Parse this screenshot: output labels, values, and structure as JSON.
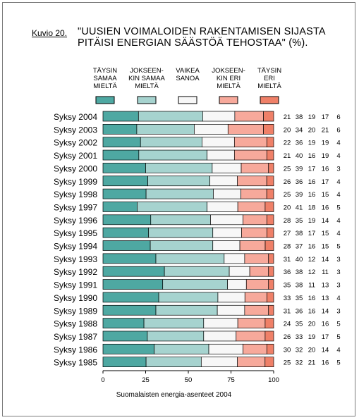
{
  "figure_label": "Kuvio 20.",
  "title_lines": [
    "\"UUSIEN VOIMALOIDEN RAKENTAMISEN SIJASTA",
    "PITÄISI ENERGIAN SÄÄSTÖÄ TEHOSTAA\" (%)."
  ],
  "caption": "Suomalaisten energia-asenteet 2004",
  "colors": [
    "#4ea8a2",
    "#a6d3cf",
    "#f7f7f7",
    "#f7a99b",
    "#ef8068"
  ],
  "chart_data": {
    "type": "bar",
    "orientation": "horizontal",
    "stacked": true,
    "xlim": [
      0,
      100
    ],
    "x_ticks": [
      0,
      25,
      50,
      75,
      100
    ],
    "legend_position": "top",
    "series": [
      {
        "name": "TÄYSIN SAMAA MIELTÄ",
        "label_lines": [
          "TÄYSIN",
          "SAMAA",
          "MIELTÄ"
        ],
        "color": "#4ea8a2"
      },
      {
        "name": "JOKSEENKIN SAMAA MIELTÄ",
        "label_lines": [
          "JOKSEEN-",
          "KIN SAMAA",
          "MIELTÄ"
        ],
        "color": "#a6d3cf"
      },
      {
        "name": "VAIKEA SANOA",
        "label_lines": [
          "VAIKEA",
          "SANOA"
        ],
        "color": "#f7f7f7"
      },
      {
        "name": "JOKSEENKIN ERI MIELTÄ",
        "label_lines": [
          "JOKSEEN-",
          "KIN ERI",
          "MIELTÄ"
        ],
        "color": "#f7a99b"
      },
      {
        "name": "TÄYSIN ERI MIELTÄ",
        "label_lines": [
          "TÄYSIN",
          "ERI",
          "MIELTÄ"
        ],
        "color": "#ef8068"
      }
    ],
    "categories": [
      "Syksy 2004",
      "Syksy 2003",
      "Syksy 2002",
      "Syksy 2001",
      "Syksy 2000",
      "Syksy 1999",
      "Syksy 1998",
      "Syksy 1997",
      "Syksy 1996",
      "Syksy 1995",
      "Syksy 1994",
      "Syksy 1993",
      "Syksy 1992",
      "Syksy 1991",
      "Syksy 1990",
      "Syksy 1989",
      "Syksy 1988",
      "Syksy 1987",
      "Syksy 1986",
      "Syksy 1985"
    ],
    "values": [
      [
        21,
        38,
        19,
        17,
        6
      ],
      [
        20,
        34,
        20,
        21,
        6
      ],
      [
        22,
        36,
        19,
        19,
        4
      ],
      [
        21,
        40,
        16,
        19,
        4
      ],
      [
        25,
        39,
        17,
        16,
        3
      ],
      [
        26,
        36,
        16,
        17,
        4
      ],
      [
        25,
        39,
        16,
        15,
        4
      ],
      [
        20,
        41,
        18,
        16,
        5
      ],
      [
        28,
        35,
        19,
        14,
        4
      ],
      [
        27,
        38,
        17,
        15,
        4
      ],
      [
        28,
        37,
        16,
        15,
        5
      ],
      [
        31,
        40,
        12,
        14,
        3
      ],
      [
        36,
        38,
        12,
        11,
        3
      ],
      [
        35,
        38,
        11,
        13,
        3
      ],
      [
        33,
        35,
        16,
        13,
        4
      ],
      [
        31,
        36,
        16,
        14,
        3
      ],
      [
        24,
        35,
        20,
        16,
        5
      ],
      [
        26,
        33,
        19,
        17,
        5
      ],
      [
        30,
        32,
        20,
        14,
        4
      ],
      [
        25,
        32,
        21,
        16,
        5
      ]
    ]
  }
}
